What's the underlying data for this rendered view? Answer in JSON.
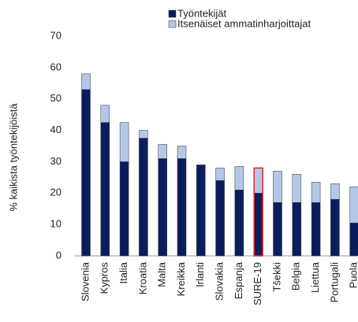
{
  "chart_data": {
    "type": "stacked_bar",
    "y_label": "% kaikista työntekijöistä",
    "categories": [
      "Slovenia",
      "Kypros",
      "Italia",
      "Kroatia",
      "Malta",
      "Kreikka",
      "Irlanti",
      "Slovakia",
      "Espanja",
      "SURE-19",
      "Tšekki",
      "Belgia",
      "Liettua",
      "Portugali",
      "Puola"
    ],
    "series": [
      {
        "name": "Työntekijät",
        "color": "#0c1d5e",
        "values": [
          53,
          42.5,
          30,
          37.5,
          31,
          31,
          29,
          24,
          21,
          20,
          17,
          17,
          17,
          18,
          10.5
        ]
      },
      {
        "name": "Itsenäiset ammatinharjoittajat",
        "color": "#b4c7e7",
        "values": [
          5,
          5.5,
          12.5,
          2.5,
          4.5,
          4,
          0,
          4,
          7.5,
          8,
          10,
          9,
          6.5,
          5,
          11.5
        ]
      }
    ],
    "ylim": [
      0,
      70
    ],
    "yticks": [
      0,
      10,
      20,
      30,
      40,
      50,
      60,
      70
    ],
    "highlight_index": 9,
    "highlight_color": "#e8262b",
    "legend": "top"
  }
}
